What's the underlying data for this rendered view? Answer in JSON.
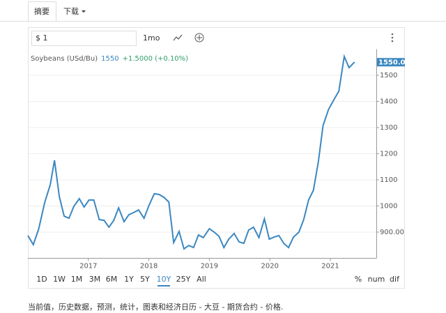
{
  "tabs": [
    "摘要",
    "下载"
  ],
  "toolbar": {
    "symbol_input": "$ 1",
    "interval": "1mo"
  },
  "chart_data": {
    "type": "line",
    "last_value": "1550",
    "change": "+1.5000 (+0.10%)",
    "last_value_label": {
      "value": 1550,
      "label": "1550.00"
    },
    "x": [
      2016.0,
      2016.09,
      2016.18,
      2016.28,
      2016.37,
      2016.44,
      2016.52,
      2016.6,
      2016.68,
      2016.76,
      2016.85,
      2016.93,
      2017.01,
      2017.09,
      2017.18,
      2017.26,
      2017.34,
      2017.42,
      2017.5,
      2017.59,
      2017.67,
      2017.75,
      2017.83,
      2017.92,
      2018.0,
      2018.09,
      2018.17,
      2018.25,
      2018.33,
      2018.41,
      2018.5,
      2018.58,
      2018.66,
      2018.74,
      2018.82,
      2018.9,
      2019.0,
      2019.08,
      2019.16,
      2019.24,
      2019.32,
      2019.41,
      2019.49,
      2019.57,
      2019.65,
      2019.73,
      2019.82,
      2019.91,
      2019.99,
      2020.07,
      2020.15,
      2020.23,
      2020.31,
      2020.39,
      2020.48,
      2020.56,
      2020.64,
      2020.72,
      2020.8,
      2020.88,
      2020.97,
      2021.06,
      2021.14,
      2021.23,
      2021.31,
      2021.4
    ],
    "series": [
      {
        "name": "Soybeans (USd/Bu)",
        "color": "#3a87c0",
        "values": [
          887,
          852,
          913,
          1015,
          1081,
          1175,
          1036,
          961,
          953,
          999,
          1028,
          996,
          1023,
          1023,
          948,
          945,
          919,
          945,
          993,
          940,
          967,
          975,
          985,
          953,
          1001,
          1047,
          1044,
          1033,
          1015,
          860,
          903,
          836,
          849,
          841,
          889,
          879,
          913,
          900,
          884,
          841,
          873,
          895,
          863,
          857,
          908,
          919,
          879,
          951,
          873,
          881,
          887,
          857,
          841,
          881,
          900,
          948,
          1023,
          1060,
          1167,
          1308,
          1369,
          1407,
          1439,
          1572,
          1529,
          1551
        ]
      }
    ],
    "xlim": [
      2016,
      2021.76
    ],
    "xticks": [
      2017,
      2018,
      2019,
      2020,
      2021
    ],
    "ylim": [
      800,
      1600
    ],
    "yticks": [
      {
        "value": 900,
        "label": "900.00"
      },
      1000,
      1100,
      1200,
      1300,
      1400,
      1500
    ],
    "grid": true
  },
  "ranges": [
    "1D",
    "1W",
    "1M",
    "3M",
    "6M",
    "1Y",
    "5Y",
    "10Y",
    "25Y",
    "All"
  ],
  "active_range_index": 7,
  "display_modes": [
    "%",
    "num",
    "dif"
  ],
  "footer": "当前值，历史数据，预测，统计，图表和经济日历 - 大豆 - 期货合约 - 价格."
}
